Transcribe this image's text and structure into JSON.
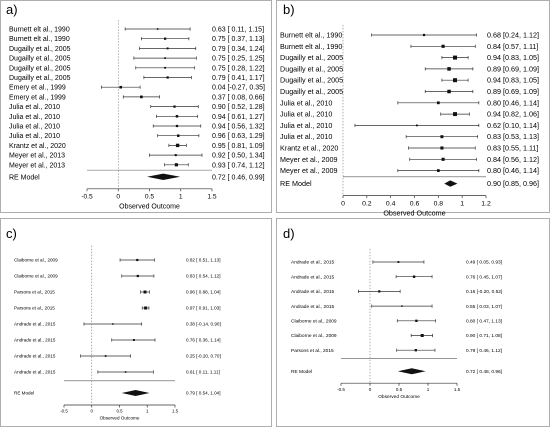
{
  "chart_data": [
    {
      "panel": "a)",
      "type": "forest",
      "xlabel": "Observed Outcome",
      "xlim": [
        -0.5,
        1.5
      ],
      "ticks": [
        "-0.5",
        "0",
        "0.5",
        "1",
        "1.5"
      ],
      "studies": [
        {
          "label": "Burnett elt al., 1990",
          "est": 0.63,
          "lo": 0.11,
          "hi": 1.15,
          "text": "0.63 [ 0.11, 1.15]"
        },
        {
          "label": "Burnett elt al., 1990",
          "est": 0.75,
          "lo": 0.37,
          "hi": 1.13,
          "text": "0.75 [ 0.37, 1.13]"
        },
        {
          "label": "Dugailly et al., 2005",
          "est": 0.79,
          "lo": 0.34,
          "hi": 1.24,
          "text": "0.79 [ 0.34, 1.24]"
        },
        {
          "label": "Dugailly et al., 2005",
          "est": 0.75,
          "lo": 0.25,
          "hi": 1.25,
          "text": "0.75 [ 0.25, 1.25]"
        },
        {
          "label": "Dugailly et al., 2005",
          "est": 0.75,
          "lo": 0.28,
          "hi": 1.22,
          "text": "0.75 [ 0.28, 1.22]"
        },
        {
          "label": "Dugailly et al., 2005",
          "est": 0.79,
          "lo": 0.41,
          "hi": 1.17,
          "text": "0.79 [ 0.41, 1.17]"
        },
        {
          "label": "Emery et al., 1999",
          "est": 0.04,
          "lo": -0.27,
          "hi": 0.35,
          "text": "0.04 [-0.27, 0.35]"
        },
        {
          "label": "Emery et al., 1999",
          "est": 0.37,
          "lo": 0.08,
          "hi": 0.66,
          "text": "0.37 [ 0.08, 0.66]"
        },
        {
          "label": "Julia et al., 2010",
          "est": 0.9,
          "lo": 0.52,
          "hi": 1.28,
          "text": "0.90 [ 0.52, 1.28]"
        },
        {
          "label": "Julia et al., 2010",
          "est": 0.94,
          "lo": 0.61,
          "hi": 1.27,
          "text": "0.94 [ 0.61, 1.27]"
        },
        {
          "label": "Julia et al., 2010",
          "est": 0.94,
          "lo": 0.56,
          "hi": 1.32,
          "text": "0.94 [ 0.56, 1.32]"
        },
        {
          "label": "Julia et al., 2010",
          "est": 0.96,
          "lo": 0.63,
          "hi": 1.29,
          "text": "0.96 [ 0.63, 1.29]"
        },
        {
          "label": "Krantz et al., 2020",
          "est": 0.95,
          "lo": 0.81,
          "hi": 1.09,
          "text": "0.95 [ 0.81, 1.09]"
        },
        {
          "label": "Meyer et al., 2013",
          "est": 0.92,
          "lo": 0.5,
          "hi": 1.34,
          "text": "0.92 [ 0.50, 1.34]"
        },
        {
          "label": "Meyer et al., 2013",
          "est": 0.93,
          "lo": 0.74,
          "hi": 1.12,
          "text": "0.93 [ 0.74, 1.12]"
        }
      ],
      "summary": {
        "label": "RE Model",
        "est": 0.72,
        "lo": 0.46,
        "hi": 0.99,
        "text": "0.72 [ 0.46, 0.99]"
      }
    },
    {
      "panel": "b)",
      "type": "forest",
      "xlabel": "Observed Outcome",
      "xlim": [
        0,
        1.2
      ],
      "ticks": [
        "0",
        "0.2",
        "0.4",
        "0.6",
        "0.8",
        "1",
        "1.2"
      ],
      "studies": [
        {
          "label": "Burnett elt al., 1990",
          "est": 0.68,
          "lo": 0.24,
          "hi": 1.12,
          "text": "0.68 [0.24, 1.12]"
        },
        {
          "label": "Burnett elt al., 1990",
          "est": 0.84,
          "lo": 0.57,
          "hi": 1.11,
          "text": "0.84 [0.57, 1.11]"
        },
        {
          "label": "Dugailly et al., 2005",
          "est": 0.94,
          "lo": 0.83,
          "hi": 1.05,
          "text": "0.94 [0.83, 1.05]"
        },
        {
          "label": "Dugailly et al., 2005",
          "est": 0.89,
          "lo": 0.69,
          "hi": 1.09,
          "text": "0.89 [0.69, 1.09]"
        },
        {
          "label": "Dugailly et al., 2005",
          "est": 0.94,
          "lo": 0.83,
          "hi": 1.05,
          "text": "0.94 [0.83, 1.05]"
        },
        {
          "label": "Dugailly et al., 2005",
          "est": 0.89,
          "lo": 0.69,
          "hi": 1.09,
          "text": "0.89 [0.69, 1.09]"
        },
        {
          "label": "Julia et al., 2010",
          "est": 0.8,
          "lo": 0.46,
          "hi": 1.14,
          "text": "0.80 [0.46, 1.14]"
        },
        {
          "label": "Julia et al., 2010",
          "est": 0.94,
          "lo": 0.82,
          "hi": 1.06,
          "text": "0.94 [0.82, 1.06]"
        },
        {
          "label": "Julia et al., 2010",
          "est": 0.62,
          "lo": 0.1,
          "hi": 1.14,
          "text": "0.62 [0.10, 1.14]"
        },
        {
          "label": "Julia et al., 2010",
          "est": 0.83,
          "lo": 0.53,
          "hi": 1.13,
          "text": "0.83 [0.53, 1.13]"
        },
        {
          "label": "Krantz et al., 2020",
          "est": 0.83,
          "lo": 0.55,
          "hi": 1.11,
          "text": "0.83 [0.55, 1.11]"
        },
        {
          "label": "Meyer et al., 2009",
          "est": 0.84,
          "lo": 0.56,
          "hi": 1.12,
          "text": "0.84 [0.56, 1.12]"
        },
        {
          "label": "Meyer et al., 2009",
          "est": 0.8,
          "lo": 0.46,
          "hi": 1.14,
          "text": "0.80 [0.46, 1.14]"
        }
      ],
      "summary": {
        "label": "RE Model",
        "est": 0.9,
        "lo": 0.85,
        "hi": 0.96,
        "text": "0.90 [0.85, 0.96]"
      }
    },
    {
      "panel": "c)",
      "type": "forest",
      "xlabel": "Observed Outcome",
      "xlim": [
        -0.5,
        1.5
      ],
      "ticks": [
        "-0.5",
        "0",
        "0.5",
        "1",
        "1.5"
      ],
      "studies": [
        {
          "label": "Claiborne et al., 2009",
          "est": 0.82,
          "lo": 0.51,
          "hi": 1.13,
          "text": "0.82 [ 0.51, 1.13]"
        },
        {
          "label": "Claiborne et al., 2009",
          "est": 0.83,
          "lo": 0.54,
          "hi": 1.12,
          "text": "0.83 [ 0.54, 1.12]"
        },
        {
          "label": "Parsons et al., 2015",
          "est": 0.96,
          "lo": 0.88,
          "hi": 1.04,
          "text": "0.96 [ 0.88, 1.04]"
        },
        {
          "label": "Parsons et al., 2015",
          "est": 0.97,
          "lo": 0.91,
          "hi": 1.03,
          "text": "0.97 [ 0.91, 1.03]"
        },
        {
          "label": "Andrade et al., 2015",
          "est": 0.38,
          "lo": -0.14,
          "hi": 0.9,
          "text": "0.38 [-0.14, 0.90]"
        },
        {
          "label": "Andrade et al., 2015",
          "est": 0.76,
          "lo": 0.36,
          "hi": 1.14,
          "text": "0.76 [ 0.36, 1.14]"
        },
        {
          "label": "Andrade et al., 2015",
          "est": 0.25,
          "lo": -0.2,
          "hi": 0.7,
          "text": "0.25 [-0.20, 0.70]"
        },
        {
          "label": "Andrade et al., 2015",
          "est": 0.61,
          "lo": 0.11,
          "hi": 1.11,
          "text": "0.61 [ 0.11, 1.11]"
        }
      ],
      "summary": {
        "label": "RE Model",
        "est": 0.79,
        "lo": 0.54,
        "hi": 1.04,
        "text": "0.79 [ 0.54, 1.04]"
      }
    },
    {
      "panel": "d)",
      "type": "forest",
      "xlabel": "Observed Outcome",
      "xlim": [
        -0.5,
        1.5
      ],
      "ticks": [
        "-0.5",
        "0",
        "0.5",
        "1",
        "1.5"
      ],
      "studies": [
        {
          "label": "Andrade et al., 2015",
          "est": 0.49,
          "lo": 0.05,
          "hi": 0.93,
          "text": "0.49 [ 0.05, 0.93]"
        },
        {
          "label": "Andrade et al., 2015",
          "est": 0.76,
          "lo": 0.45,
          "hi": 1.07,
          "text": "0.76 [ 0.45, 1.07]"
        },
        {
          "label": "Andrade et al., 2015",
          "est": 0.16,
          "lo": -0.2,
          "hi": 0.52,
          "text": "0.16 [-0.20, 0.52]"
        },
        {
          "label": "Andrade et al., 2015",
          "est": 0.55,
          "lo": 0.03,
          "hi": 1.07,
          "text": "0.55 [ 0.03, 1.07]"
        },
        {
          "label": "Claiborne et al., 2009",
          "est": 0.8,
          "lo": 0.47,
          "hi": 1.13,
          "text": "0.80 [ 0.47, 1.13]"
        },
        {
          "label": "Claiborne et al., 2009",
          "est": 0.9,
          "lo": 0.71,
          "hi": 1.08,
          "text": "0.90 [ 0.71, 1.08]"
        },
        {
          "label": "Parsons et al., 2015",
          "est": 0.79,
          "lo": 0.46,
          "hi": 1.12,
          "text": "0.79 [ 0.46, 1.12]"
        }
      ],
      "summary": {
        "label": "RE Model",
        "est": 0.72,
        "lo": 0.48,
        "hi": 0.96,
        "text": "0.72 [ 0.48, 0.96]"
      }
    }
  ]
}
